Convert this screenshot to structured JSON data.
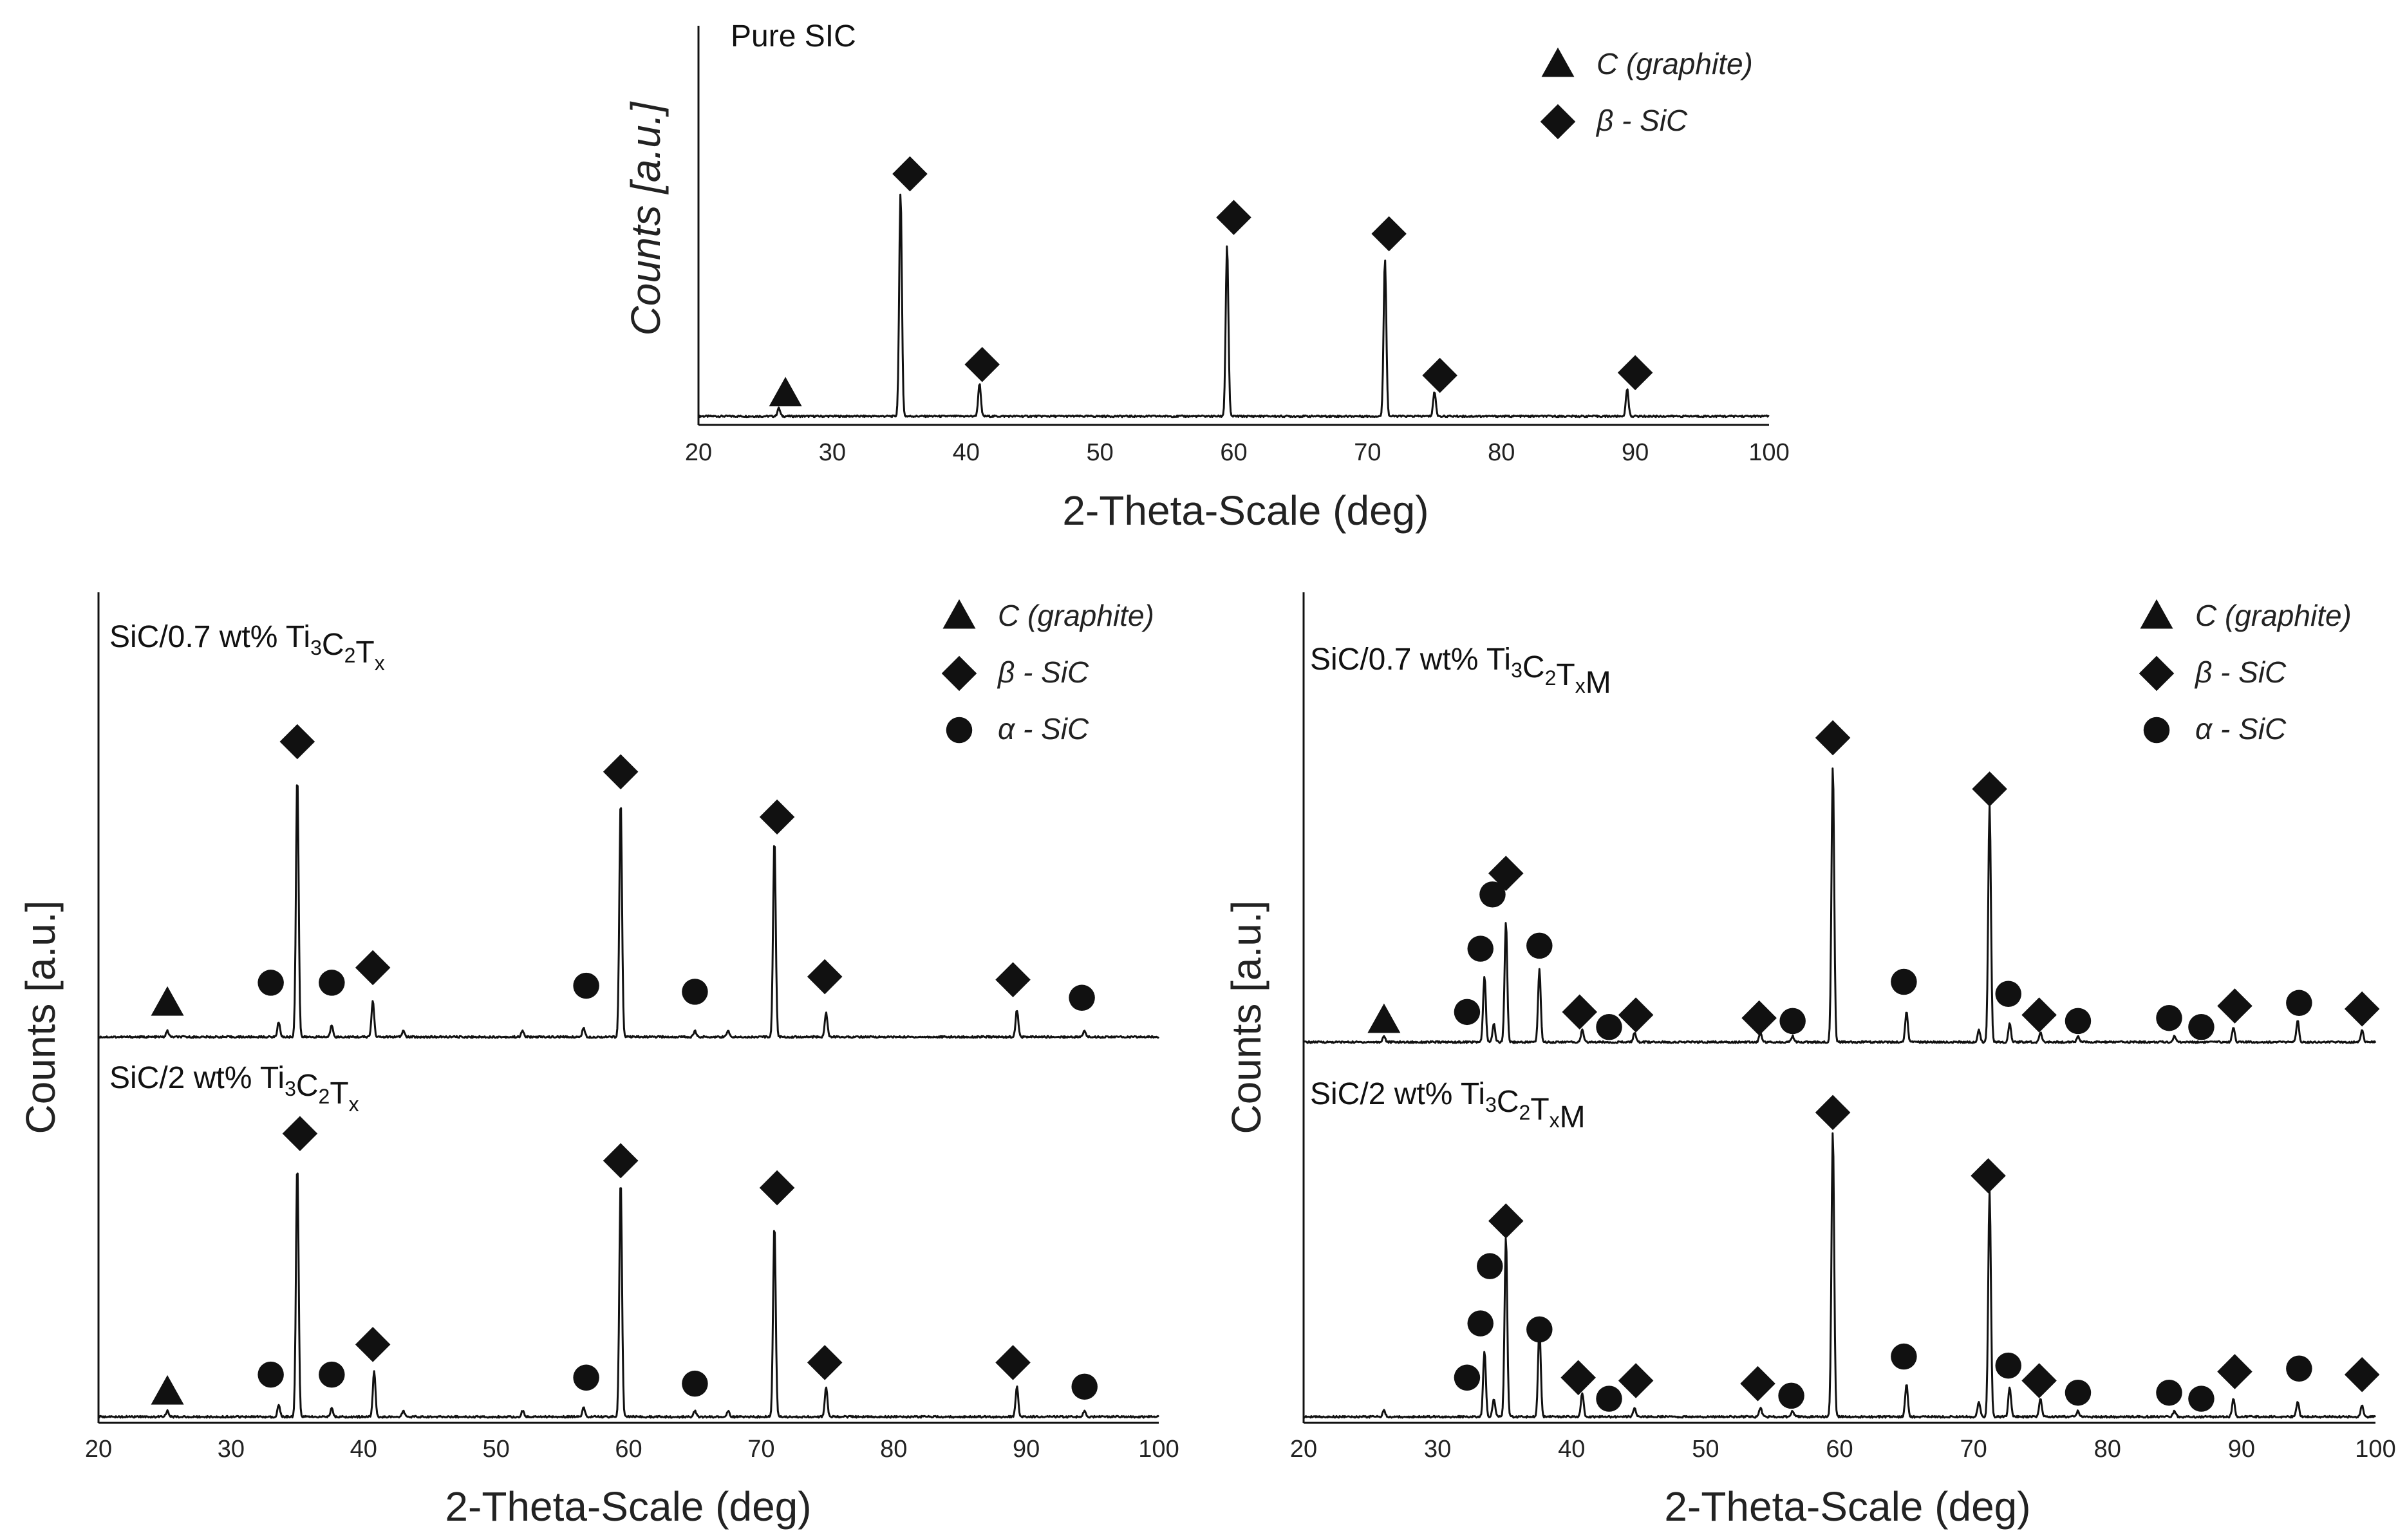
{
  "figure": {
    "layout": "three XRD panels: one top, two bottom"
  },
  "colors": {
    "ink": "#111111",
    "text": "#222222",
    "background": "#ffffff"
  },
  "symbols": {
    "graphite": "triangle",
    "beta": "diamond",
    "alpha": "circle"
  },
  "chart_data": [
    {
      "type": "line",
      "id": "pure",
      "title": "",
      "xlabel": "2-Theta-Scale (deg)",
      "ylabel": "Counts [a.u.]",
      "xlim": [
        20,
        100
      ],
      "xticks": [
        "20",
        "30",
        "40",
        "50",
        "60",
        "70",
        "80",
        "90",
        "100"
      ],
      "legend": [
        {
          "symbol": "graphite",
          "label": "C (graphite)"
        },
        {
          "symbol": "beta",
          "label": "β - SiC"
        }
      ],
      "traces": [
        {
          "name": "Pure SIC",
          "label_parts": [
            {
              "t": "Pure SIC"
            }
          ],
          "ymax": 1.0,
          "baseline": 0.02,
          "peaks": [
            [
              26.0,
              0.03
            ],
            [
              35.1,
              0.82
            ],
            [
              41.0,
              0.12
            ],
            [
              59.5,
              0.63
            ],
            [
              71.3,
              0.58
            ],
            [
              75.0,
              0.09
            ],
            [
              89.4,
              0.1
            ]
          ],
          "markers": [
            {
              "x": 26.5,
              "y": 0.1,
              "symbol": "graphite"
            },
            {
              "x": 35.8,
              "y": 0.91,
              "symbol": "beta"
            },
            {
              "x": 41.2,
              "y": 0.21,
              "symbol": "beta"
            },
            {
              "x": 60.0,
              "y": 0.75,
              "symbol": "beta"
            },
            {
              "x": 71.6,
              "y": 0.69,
              "symbol": "beta"
            },
            {
              "x": 75.4,
              "y": 0.17,
              "symbol": "beta"
            },
            {
              "x": 90.0,
              "y": 0.18,
              "symbol": "beta"
            }
          ]
        }
      ]
    },
    {
      "type": "line",
      "id": "left",
      "title": "",
      "xlabel": "2-Theta-Scale (deg)",
      "ylabel": "Counts [a.u.]",
      "xlim": [
        20,
        100
      ],
      "xticks": [
        "20",
        "30",
        "40",
        "50",
        "60",
        "70",
        "80",
        "90",
        "100"
      ],
      "legend": [
        {
          "symbol": "graphite",
          "label": "C (graphite)"
        },
        {
          "symbol": "beta",
          "label": "β - SiC"
        },
        {
          "symbol": "alpha",
          "label": "α - SiC"
        }
      ],
      "traces": [
        {
          "name": "SiC/0.7 wt% Ti3C2Tx",
          "label_parts": [
            {
              "t": "SiC/0.7 wt% Ti"
            },
            {
              "t": "3",
              "sub": true
            },
            {
              "t": "C"
            },
            {
              "t": "2",
              "sub": true
            },
            {
              "t": "T"
            },
            {
              "t": "x",
              "sub": true
            }
          ],
          "ymax": 1.0,
          "baseline": 0.02,
          "peaks": [
            [
              25.2,
              0.02
            ],
            [
              33.6,
              0.05
            ],
            [
              35.0,
              0.87
            ],
            [
              37.6,
              0.04
            ],
            [
              40.7,
              0.12
            ],
            [
              43.0,
              0.02
            ],
            [
              52.0,
              0.02
            ],
            [
              56.6,
              0.03
            ],
            [
              59.4,
              0.79
            ],
            [
              65.0,
              0.02
            ],
            [
              67.5,
              0.02
            ],
            [
              71.0,
              0.66
            ],
            [
              74.9,
              0.08
            ],
            [
              89.3,
              0.09
            ],
            [
              94.4,
              0.02
            ]
          ],
          "markers": [
            {
              "x": 25.2,
              "y": 0.13,
              "symbol": "graphite"
            },
            {
              "x": 33.0,
              "y": 0.2,
              "symbol": "alpha"
            },
            {
              "x": 35.0,
              "y": 1.0,
              "symbol": "beta"
            },
            {
              "x": 37.6,
              "y": 0.2,
              "symbol": "alpha"
            },
            {
              "x": 40.7,
              "y": 0.25,
              "symbol": "beta"
            },
            {
              "x": 56.8,
              "y": 0.19,
              "symbol": "alpha"
            },
            {
              "x": 59.4,
              "y": 0.9,
              "symbol": "beta"
            },
            {
              "x": 65.0,
              "y": 0.17,
              "symbol": "alpha"
            },
            {
              "x": 71.2,
              "y": 0.75,
              "symbol": "beta"
            },
            {
              "x": 74.8,
              "y": 0.22,
              "symbol": "beta"
            },
            {
              "x": 89.0,
              "y": 0.21,
              "symbol": "beta"
            },
            {
              "x": 94.2,
              "y": 0.15,
              "symbol": "alpha"
            }
          ]
        },
        {
          "name": "SiC/2 wt% Ti3C2Tx",
          "label_parts": [
            {
              "t": "SiC/2 wt% Ti"
            },
            {
              "t": "3",
              "sub": true
            },
            {
              "t": "C"
            },
            {
              "t": "2",
              "sub": true
            },
            {
              "t": "T"
            },
            {
              "t": "x",
              "sub": true
            }
          ],
          "ymax": 1.0,
          "baseline": 0.02,
          "peaks": [
            [
              25.2,
              0.02
            ],
            [
              33.6,
              0.04
            ],
            [
              35.0,
              0.84
            ],
            [
              37.6,
              0.03
            ],
            [
              40.8,
              0.15
            ],
            [
              43.0,
              0.02
            ],
            [
              52.0,
              0.02
            ],
            [
              56.6,
              0.03
            ],
            [
              59.4,
              0.79
            ],
            [
              65.0,
              0.02
            ],
            [
              67.5,
              0.02
            ],
            [
              71.0,
              0.64
            ],
            [
              74.9,
              0.1
            ],
            [
              89.3,
              0.1
            ],
            [
              94.4,
              0.02
            ]
          ],
          "markers": [
            {
              "x": 25.2,
              "y": 0.1,
              "symbol": "graphite"
            },
            {
              "x": 33.0,
              "y": 0.16,
              "symbol": "alpha"
            },
            {
              "x": 35.2,
              "y": 0.96,
              "symbol": "beta"
            },
            {
              "x": 37.6,
              "y": 0.16,
              "symbol": "alpha"
            },
            {
              "x": 40.7,
              "y": 0.26,
              "symbol": "beta"
            },
            {
              "x": 56.8,
              "y": 0.15,
              "symbol": "alpha"
            },
            {
              "x": 59.4,
              "y": 0.87,
              "symbol": "beta"
            },
            {
              "x": 65.0,
              "y": 0.13,
              "symbol": "alpha"
            },
            {
              "x": 71.2,
              "y": 0.78,
              "symbol": "beta"
            },
            {
              "x": 74.8,
              "y": 0.2,
              "symbol": "beta"
            },
            {
              "x": 89.0,
              "y": 0.2,
              "symbol": "beta"
            },
            {
              "x": 94.4,
              "y": 0.12,
              "symbol": "alpha"
            }
          ]
        }
      ]
    },
    {
      "type": "line",
      "id": "right",
      "title": "",
      "xlabel": "2-Theta-Scale (deg)",
      "ylabel": "Counts [a.u.]",
      "xlim": [
        20,
        100
      ],
      "xticks": [
        "20",
        "30",
        "40",
        "50",
        "60",
        "70",
        "80",
        "90",
        "100"
      ],
      "legend": [
        {
          "symbol": "graphite",
          "label": "C (graphite)"
        },
        {
          "symbol": "beta",
          "label": "β - SiC"
        },
        {
          "symbol": "alpha",
          "label": "α - SiC"
        }
      ],
      "traces": [
        {
          "name": "SiC/0.7 wt% Ti3C2TxM",
          "label_parts": [
            {
              "t": "SiC/0.7 wt% Ti"
            },
            {
              "t": "3",
              "sub": true
            },
            {
              "t": "C"
            },
            {
              "t": "2",
              "sub": true
            },
            {
              "t": "T"
            },
            {
              "t": "x",
              "sub": true
            },
            {
              "t": "M"
            }
          ],
          "ymax": 1.0,
          "baseline": 0.02,
          "peaks": [
            [
              26.0,
              0.02
            ],
            [
              33.5,
              0.22
            ],
            [
              34.2,
              0.06
            ],
            [
              35.1,
              0.4
            ],
            [
              37.6,
              0.24
            ],
            [
              40.8,
              0.04
            ],
            [
              44.7,
              0.03
            ],
            [
              54.1,
              0.03
            ],
            [
              56.5,
              0.02
            ],
            [
              59.5,
              0.92
            ],
            [
              65.0,
              0.1
            ],
            [
              70.4,
              0.04
            ],
            [
              71.2,
              0.79
            ],
            [
              72.7,
              0.06
            ],
            [
              75.0,
              0.03
            ],
            [
              77.8,
              0.02
            ],
            [
              85.0,
              0.02
            ],
            [
              89.4,
              0.05
            ],
            [
              94.2,
              0.07
            ],
            [
              99.0,
              0.04
            ]
          ],
          "markers": [
            {
              "x": 26.0,
              "y": 0.09,
              "symbol": "graphite"
            },
            {
              "x": 32.2,
              "y": 0.12,
              "symbol": "alpha"
            },
            {
              "x": 33.2,
              "y": 0.33,
              "symbol": "alpha"
            },
            {
              "x": 34.1,
              "y": 0.51,
              "symbol": "alpha"
            },
            {
              "x": 35.1,
              "y": 0.58,
              "symbol": "beta"
            },
            {
              "x": 37.6,
              "y": 0.34,
              "symbol": "alpha"
            },
            {
              "x": 40.6,
              "y": 0.12,
              "symbol": "beta"
            },
            {
              "x": 42.8,
              "y": 0.07,
              "symbol": "alpha"
            },
            {
              "x": 44.8,
              "y": 0.11,
              "symbol": "beta"
            },
            {
              "x": 54.0,
              "y": 0.1,
              "symbol": "beta"
            },
            {
              "x": 56.5,
              "y": 0.09,
              "symbol": "alpha"
            },
            {
              "x": 59.5,
              "y": 1.03,
              "symbol": "beta"
            },
            {
              "x": 64.8,
              "y": 0.22,
              "symbol": "alpha"
            },
            {
              "x": 71.2,
              "y": 0.86,
              "symbol": "beta"
            },
            {
              "x": 72.6,
              "y": 0.18,
              "symbol": "alpha"
            },
            {
              "x": 74.9,
              "y": 0.11,
              "symbol": "beta"
            },
            {
              "x": 77.8,
              "y": 0.09,
              "symbol": "alpha"
            },
            {
              "x": 84.6,
              "y": 0.1,
              "symbol": "alpha"
            },
            {
              "x": 87.0,
              "y": 0.07,
              "symbol": "alpha"
            },
            {
              "x": 89.5,
              "y": 0.14,
              "symbol": "beta"
            },
            {
              "x": 94.3,
              "y": 0.15,
              "symbol": "alpha"
            },
            {
              "x": 99.0,
              "y": 0.13,
              "symbol": "beta"
            }
          ]
        },
        {
          "name": "SiC/2 wt% Ti3C2TxM",
          "label_parts": [
            {
              "t": "SiC/2 wt% Ti"
            },
            {
              "t": "3",
              "sub": true
            },
            {
              "t": "C"
            },
            {
              "t": "2",
              "sub": true
            },
            {
              "t": "T"
            },
            {
              "t": "x",
              "sub": true
            },
            {
              "t": "M"
            }
          ],
          "ymax": 1.0,
          "baseline": 0.02,
          "peaks": [
            [
              26.0,
              0.02
            ],
            [
              33.5,
              0.22
            ],
            [
              34.2,
              0.06
            ],
            [
              35.1,
              0.6
            ],
            [
              37.6,
              0.3
            ],
            [
              40.8,
              0.08
            ],
            [
              44.7,
              0.03
            ],
            [
              54.1,
              0.03
            ],
            [
              56.5,
              0.02
            ],
            [
              59.5,
              0.95
            ],
            [
              65.0,
              0.11
            ],
            [
              70.4,
              0.05
            ],
            [
              71.2,
              0.75
            ],
            [
              72.7,
              0.1
            ],
            [
              75.0,
              0.06
            ],
            [
              77.8,
              0.02
            ],
            [
              85.0,
              0.02
            ],
            [
              89.4,
              0.06
            ],
            [
              94.2,
              0.05
            ],
            [
              99.0,
              0.04
            ]
          ],
          "markers": [
            {
              "x": 32.2,
              "y": 0.15,
              "symbol": "alpha"
            },
            {
              "x": 33.2,
              "y": 0.33,
              "symbol": "alpha"
            },
            {
              "x": 33.9,
              "y": 0.52,
              "symbol": "alpha"
            },
            {
              "x": 35.1,
              "y": 0.67,
              "symbol": "beta"
            },
            {
              "x": 37.6,
              "y": 0.31,
              "symbol": "alpha"
            },
            {
              "x": 40.5,
              "y": 0.15,
              "symbol": "beta"
            },
            {
              "x": 42.8,
              "y": 0.08,
              "symbol": "alpha"
            },
            {
              "x": 44.8,
              "y": 0.14,
              "symbol": "beta"
            },
            {
              "x": 53.9,
              "y": 0.13,
              "symbol": "beta"
            },
            {
              "x": 56.4,
              "y": 0.09,
              "symbol": "alpha"
            },
            {
              "x": 59.5,
              "y": 1.03,
              "symbol": "beta"
            },
            {
              "x": 64.8,
              "y": 0.22,
              "symbol": "alpha"
            },
            {
              "x": 71.1,
              "y": 0.82,
              "symbol": "beta"
            },
            {
              "x": 72.6,
              "y": 0.19,
              "symbol": "alpha"
            },
            {
              "x": 74.9,
              "y": 0.14,
              "symbol": "beta"
            },
            {
              "x": 77.8,
              "y": 0.1,
              "symbol": "alpha"
            },
            {
              "x": 84.6,
              "y": 0.1,
              "symbol": "alpha"
            },
            {
              "x": 87.0,
              "y": 0.08,
              "symbol": "alpha"
            },
            {
              "x": 89.5,
              "y": 0.17,
              "symbol": "beta"
            },
            {
              "x": 94.3,
              "y": 0.18,
              "symbol": "alpha"
            },
            {
              "x": 99.0,
              "y": 0.16,
              "symbol": "beta"
            }
          ]
        }
      ]
    }
  ]
}
